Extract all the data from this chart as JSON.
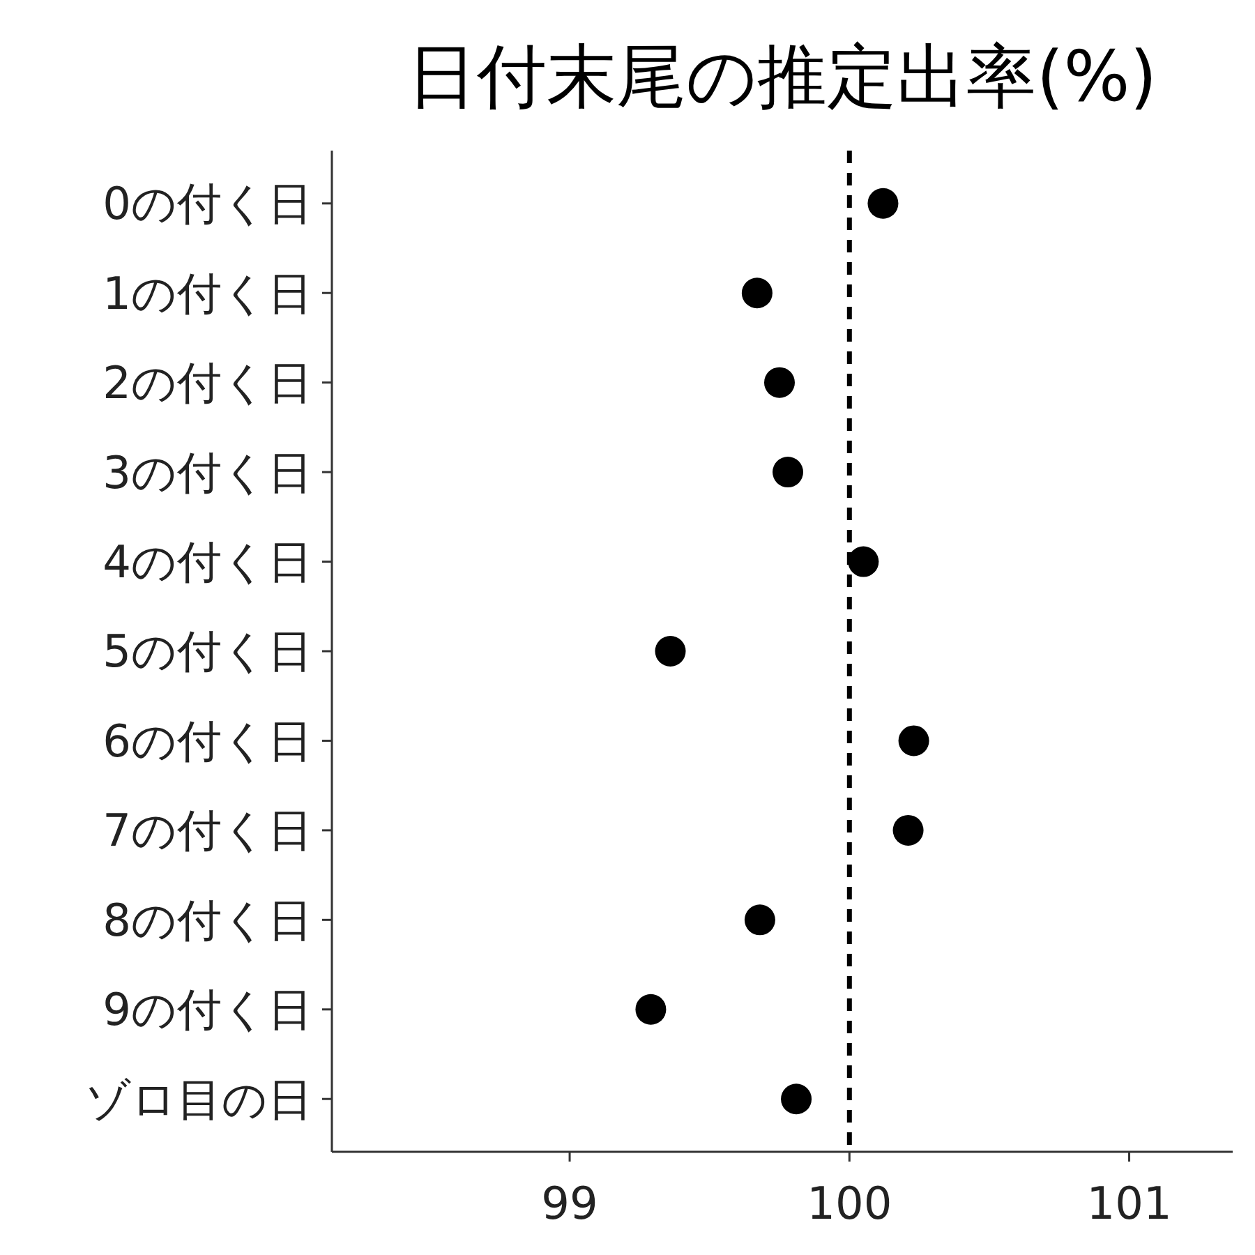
{
  "chart_data": {
    "type": "scatter",
    "title": "日付末尾の推定出率(%)",
    "orientation": "horizontal",
    "categories": [
      "0の付く日",
      "1の付く日",
      "2の付く日",
      "3の付く日",
      "4の付く日",
      "5の付く日",
      "6の付く日",
      "7の付く日",
      "8の付く日",
      "9の付く日",
      "ゾロ目の日"
    ],
    "values": [
      100.12,
      99.67,
      99.75,
      99.78,
      100.05,
      99.36,
      100.23,
      100.21,
      99.68,
      99.29,
      99.81
    ],
    "color": "#000000",
    "marker": "circle",
    "xlim": [
      98.15,
      101.37
    ],
    "xticks": [
      99,
      100,
      101
    ],
    "ref_lines": [
      {
        "axis": "x",
        "value": 100,
        "line_style": "dashed",
        "color": "#000000"
      }
    ],
    "grid": false
  }
}
